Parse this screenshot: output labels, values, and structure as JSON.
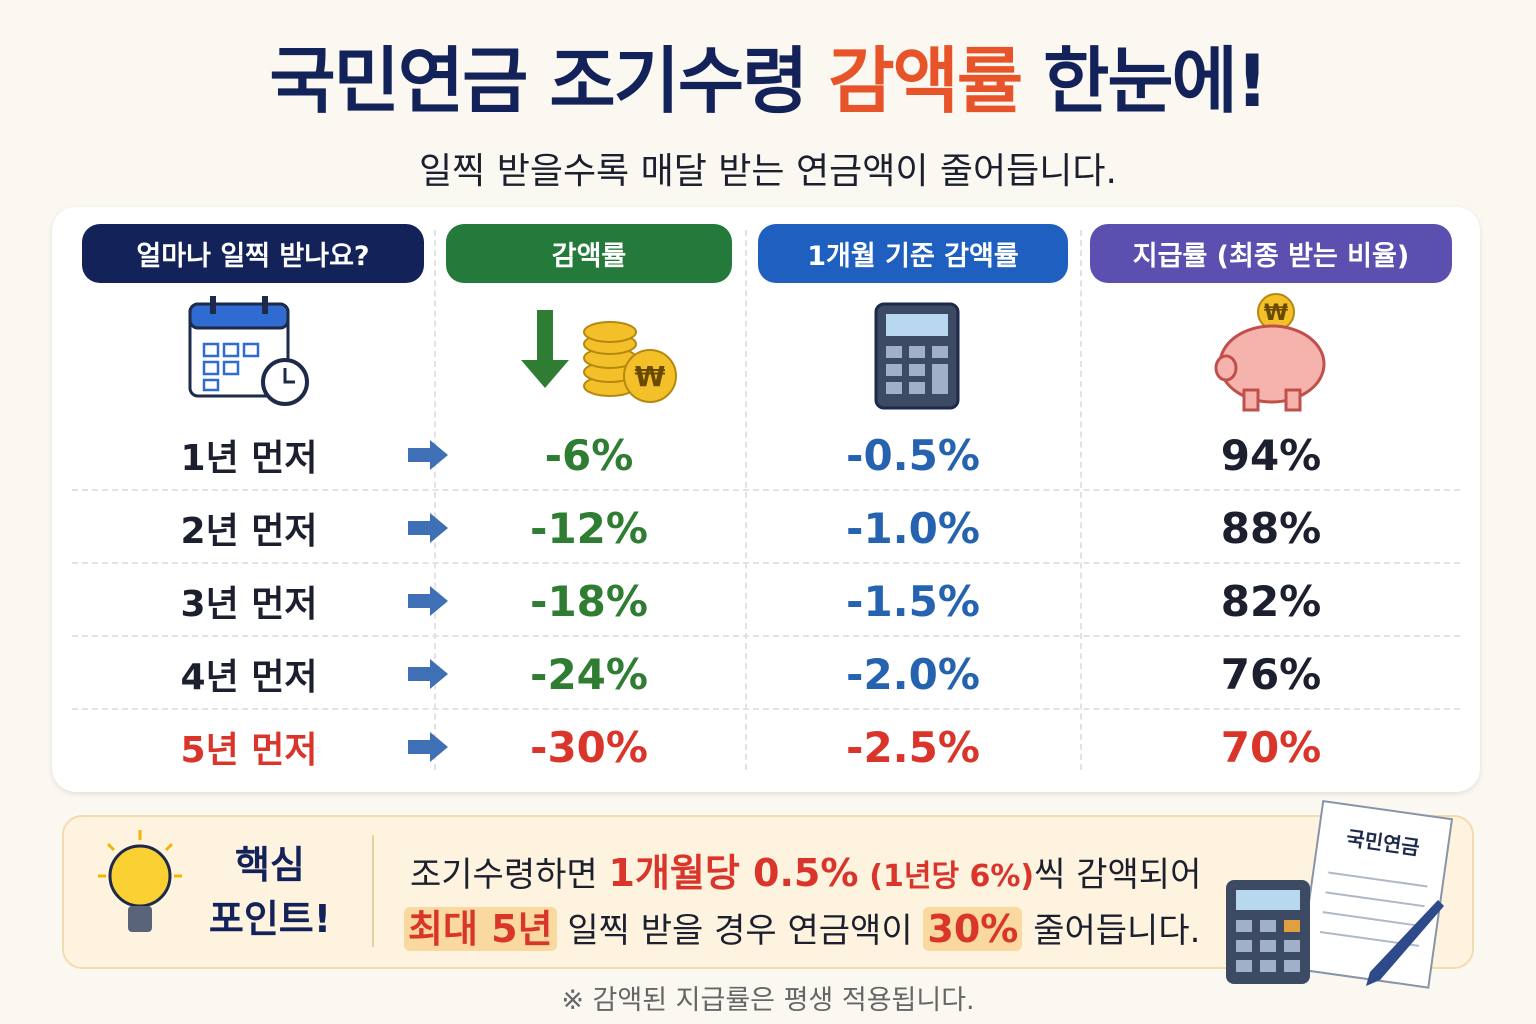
{
  "header": {
    "title": [
      "국민연금 조기수령",
      "감액률",
      "한눈에!"
    ],
    "subtitle": "일찍 받을수록 매달 받는 연금액이 줄어듭니다."
  },
  "table": {
    "columns": [
      "얼마나 일찍 받나요?",
      "감액률",
      "1개월 기준 감액률",
      "지급률 (최종 받는 비율)"
    ],
    "rows": [
      [
        "1년 먼저",
        "-6%",
        "-0.5%",
        "94%"
      ],
      [
        "2년 먼저",
        "-12%",
        "-1.0%",
        "88%"
      ],
      [
        "3년 먼저",
        "-18%",
        "-1.5%",
        "82%"
      ],
      [
        "4년 먼저",
        "-24%",
        "-2.0%",
        "76%"
      ],
      [
        "5년 먼저",
        "-30%",
        "-2.5%",
        "70%"
      ]
    ]
  },
  "key_point": {
    "label": [
      "핵심",
      "포인트!"
    ],
    "line1": [
      "조기수령하면",
      "1개월당 0.5%",
      "(1년당 6%)",
      "씩 감액되어"
    ],
    "line2": [
      "최대 5년",
      "일찍 받을 경우 연금액이",
      "30%",
      "줄어듭니다."
    ],
    "document_label": "국민연금"
  },
  "footnote": "※ 감액된 지급률은 평생 적용됩니다."
}
